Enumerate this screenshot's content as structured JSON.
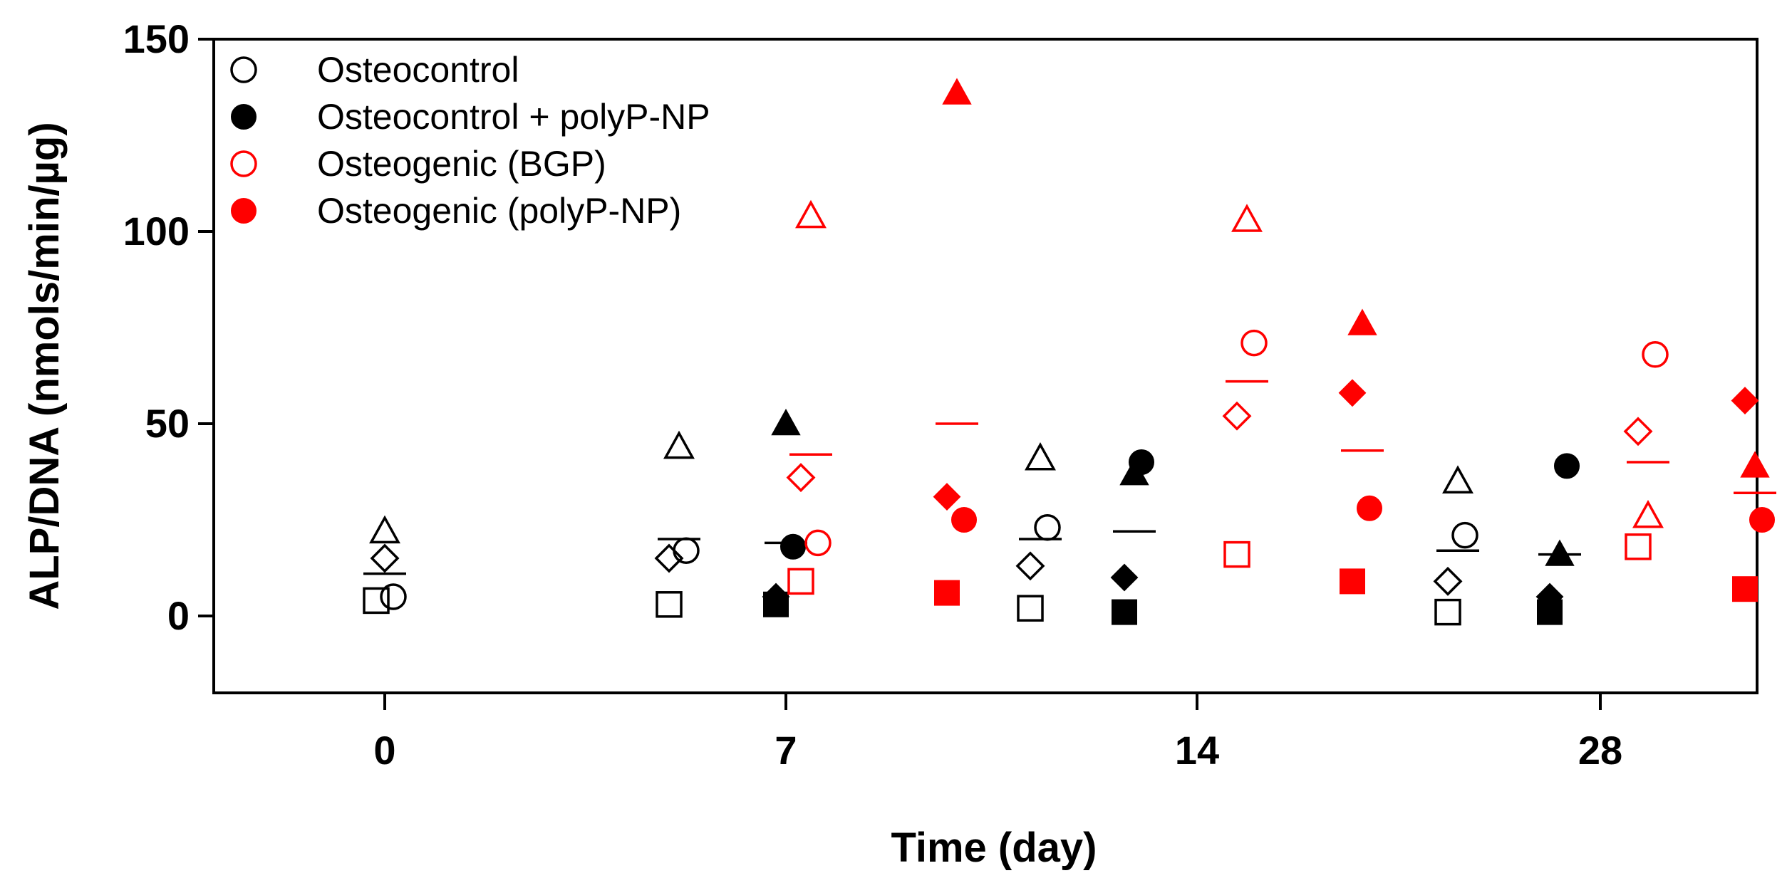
{
  "chart_data": {
    "type": "scatter",
    "title": "",
    "xlabel": "Time (day)",
    "ylabel": "ALP/DNA (nmols/min/µg)",
    "categories": [
      "0",
      "7",
      "14",
      "28"
    ],
    "ylim": [
      -20,
      150
    ],
    "yticks": [
      0,
      50,
      100,
      150
    ],
    "grid": false,
    "legend_position": "top-left",
    "marker_shapes": [
      "circle",
      "diamond",
      "square",
      "triangle"
    ],
    "series": [
      {
        "name": "Osteocontrol",
        "color": "#000000",
        "filled": false,
        "points": [
          {
            "category": "0",
            "values": {
              "circle": 5,
              "diamond": 15,
              "square": 4,
              "triangle": 22
            },
            "mean": 11
          },
          {
            "category": "7",
            "values": {
              "circle": 17,
              "diamond": 15,
              "square": 3,
              "triangle": 44
            },
            "mean": 20
          },
          {
            "category": "14",
            "values": {
              "circle": 23,
              "diamond": 13,
              "square": 2,
              "triangle": 41
            },
            "mean": 20
          },
          {
            "category": "28",
            "values": {
              "circle": 21,
              "diamond": 9,
              "square": 1,
              "triangle": 35
            },
            "mean": 17
          }
        ]
      },
      {
        "name": "Osteocontrol + polyP-NP",
        "color": "#000000",
        "filled": true,
        "points": [
          {
            "category": "7",
            "values": {
              "circle": 18,
              "diamond": 5,
              "square": 3,
              "triangle": 50
            },
            "mean": 19
          },
          {
            "category": "14",
            "values": {
              "circle": 40,
              "diamond": 10,
              "square": 1,
              "triangle": 37
            },
            "mean": 22
          },
          {
            "category": "28",
            "values": {
              "circle": 39,
              "diamond": 5,
              "square": 1,
              "triangle": 16
            },
            "mean": 16
          }
        ]
      },
      {
        "name": "Osteogenic (BGP)",
        "color": "#ff0000",
        "filled": false,
        "points": [
          {
            "category": "7",
            "values": {
              "circle": 19,
              "diamond": 36,
              "square": 9,
              "triangle": 104
            },
            "mean": 42
          },
          {
            "category": "14",
            "values": {
              "circle": 71,
              "diamond": 52,
              "square": 16,
              "triangle": 103
            },
            "mean": 61
          },
          {
            "category": "28",
            "values": {
              "circle": 68,
              "diamond": 48,
              "square": 18,
              "triangle": 26
            },
            "mean": 40
          }
        ]
      },
      {
        "name": "Osteogenic (polyP-NP)",
        "color": "#ff0000",
        "filled": true,
        "points": [
          {
            "category": "7",
            "values": {
              "circle": 25,
              "diamond": 31,
              "square": 6,
              "triangle": 136
            },
            "mean": 50
          },
          {
            "category": "14",
            "values": {
              "circle": 28,
              "diamond": 58,
              "square": 9,
              "triangle": 76
            },
            "mean": 43
          },
          {
            "category": "28",
            "values": {
              "circle": 25,
              "diamond": 56,
              "square": 7,
              "triangle": 39
            },
            "mean": 32
          }
        ]
      }
    ]
  }
}
